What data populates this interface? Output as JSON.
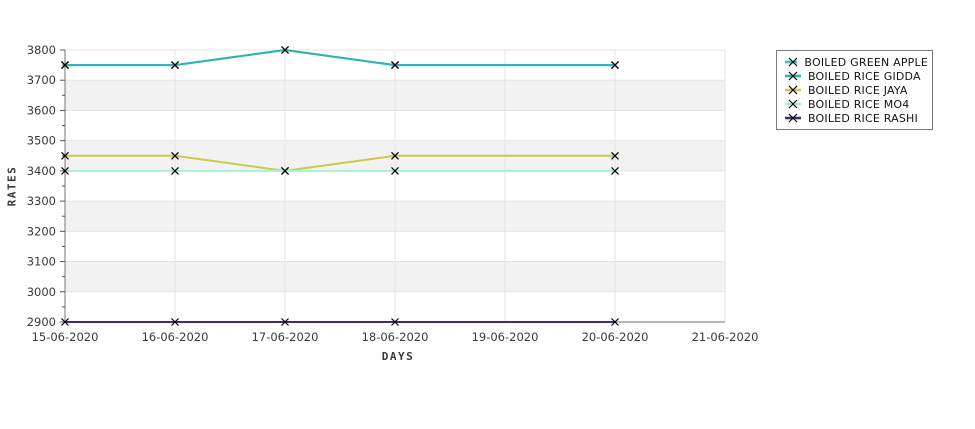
{
  "chart_data": {
    "type": "line",
    "title": "",
    "xlabel": "DAYS",
    "ylabel": "RATES",
    "x_tick_labels": [
      "15-06-2020",
      "16-06-2020",
      "17-06-2020",
      "18-06-2020",
      "19-06-2020",
      "20-06-2020",
      "21-06-2020"
    ],
    "ylim": [
      2900,
      3800
    ],
    "y_tick_step": 100,
    "y_minor_tick_step": 50,
    "y_tick_labels": [
      "2900",
      "3000",
      "3100",
      "3200",
      "3300",
      "3400",
      "3500",
      "3600",
      "3700",
      "3800"
    ],
    "grid": true,
    "alternating_bands": true,
    "marker": "x",
    "legend_position": "outside-right",
    "series": [
      {
        "name": "BOILED GREEN APPLE",
        "color": "#35c4cb",
        "x": [
          "15-06-2020",
          "16-06-2020",
          "17-06-2020",
          "18-06-2020",
          "20-06-2020"
        ],
        "values": [
          3750,
          3750,
          3800,
          3750,
          3750
        ]
      },
      {
        "name": "BOILED RICE GIDDA",
        "color": "#2eb2bb",
        "x": [
          "15-06-2020",
          "16-06-2020",
          "17-06-2020",
          "18-06-2020",
          "20-06-2020"
        ],
        "values": [
          3750,
          3750,
          3800,
          3750,
          3750
        ]
      },
      {
        "name": "BOILED RICE JAYA",
        "color": "#d0c84d",
        "x": [
          "15-06-2020",
          "16-06-2020",
          "17-06-2020",
          "18-06-2020",
          "20-06-2020"
        ],
        "values": [
          3450,
          3450,
          3400,
          3450,
          3450
        ]
      },
      {
        "name": "BOILED RICE MO4",
        "color": "#a8f0d3",
        "x": [
          "15-06-2020",
          "16-06-2020",
          "17-06-2020",
          "18-06-2020",
          "20-06-2020"
        ],
        "values": [
          3400,
          3400,
          3400,
          3400,
          3400
        ]
      },
      {
        "name": "BOILED RICE RASHI",
        "color": "#452a7a",
        "x": [
          "15-06-2020",
          "16-06-2020",
          "17-06-2020",
          "18-06-2020",
          "20-06-2020"
        ],
        "values": [
          2900,
          2900,
          2900,
          2900,
          2900
        ]
      }
    ],
    "colors": {
      "band": "#f2f2f2",
      "grid": "#e4e4e4",
      "axis": "#8c8c8c",
      "tick": "#555555",
      "text": "#3a3a3a",
      "marker": "#000000",
      "legend_border": "#7a7a7a"
    }
  }
}
